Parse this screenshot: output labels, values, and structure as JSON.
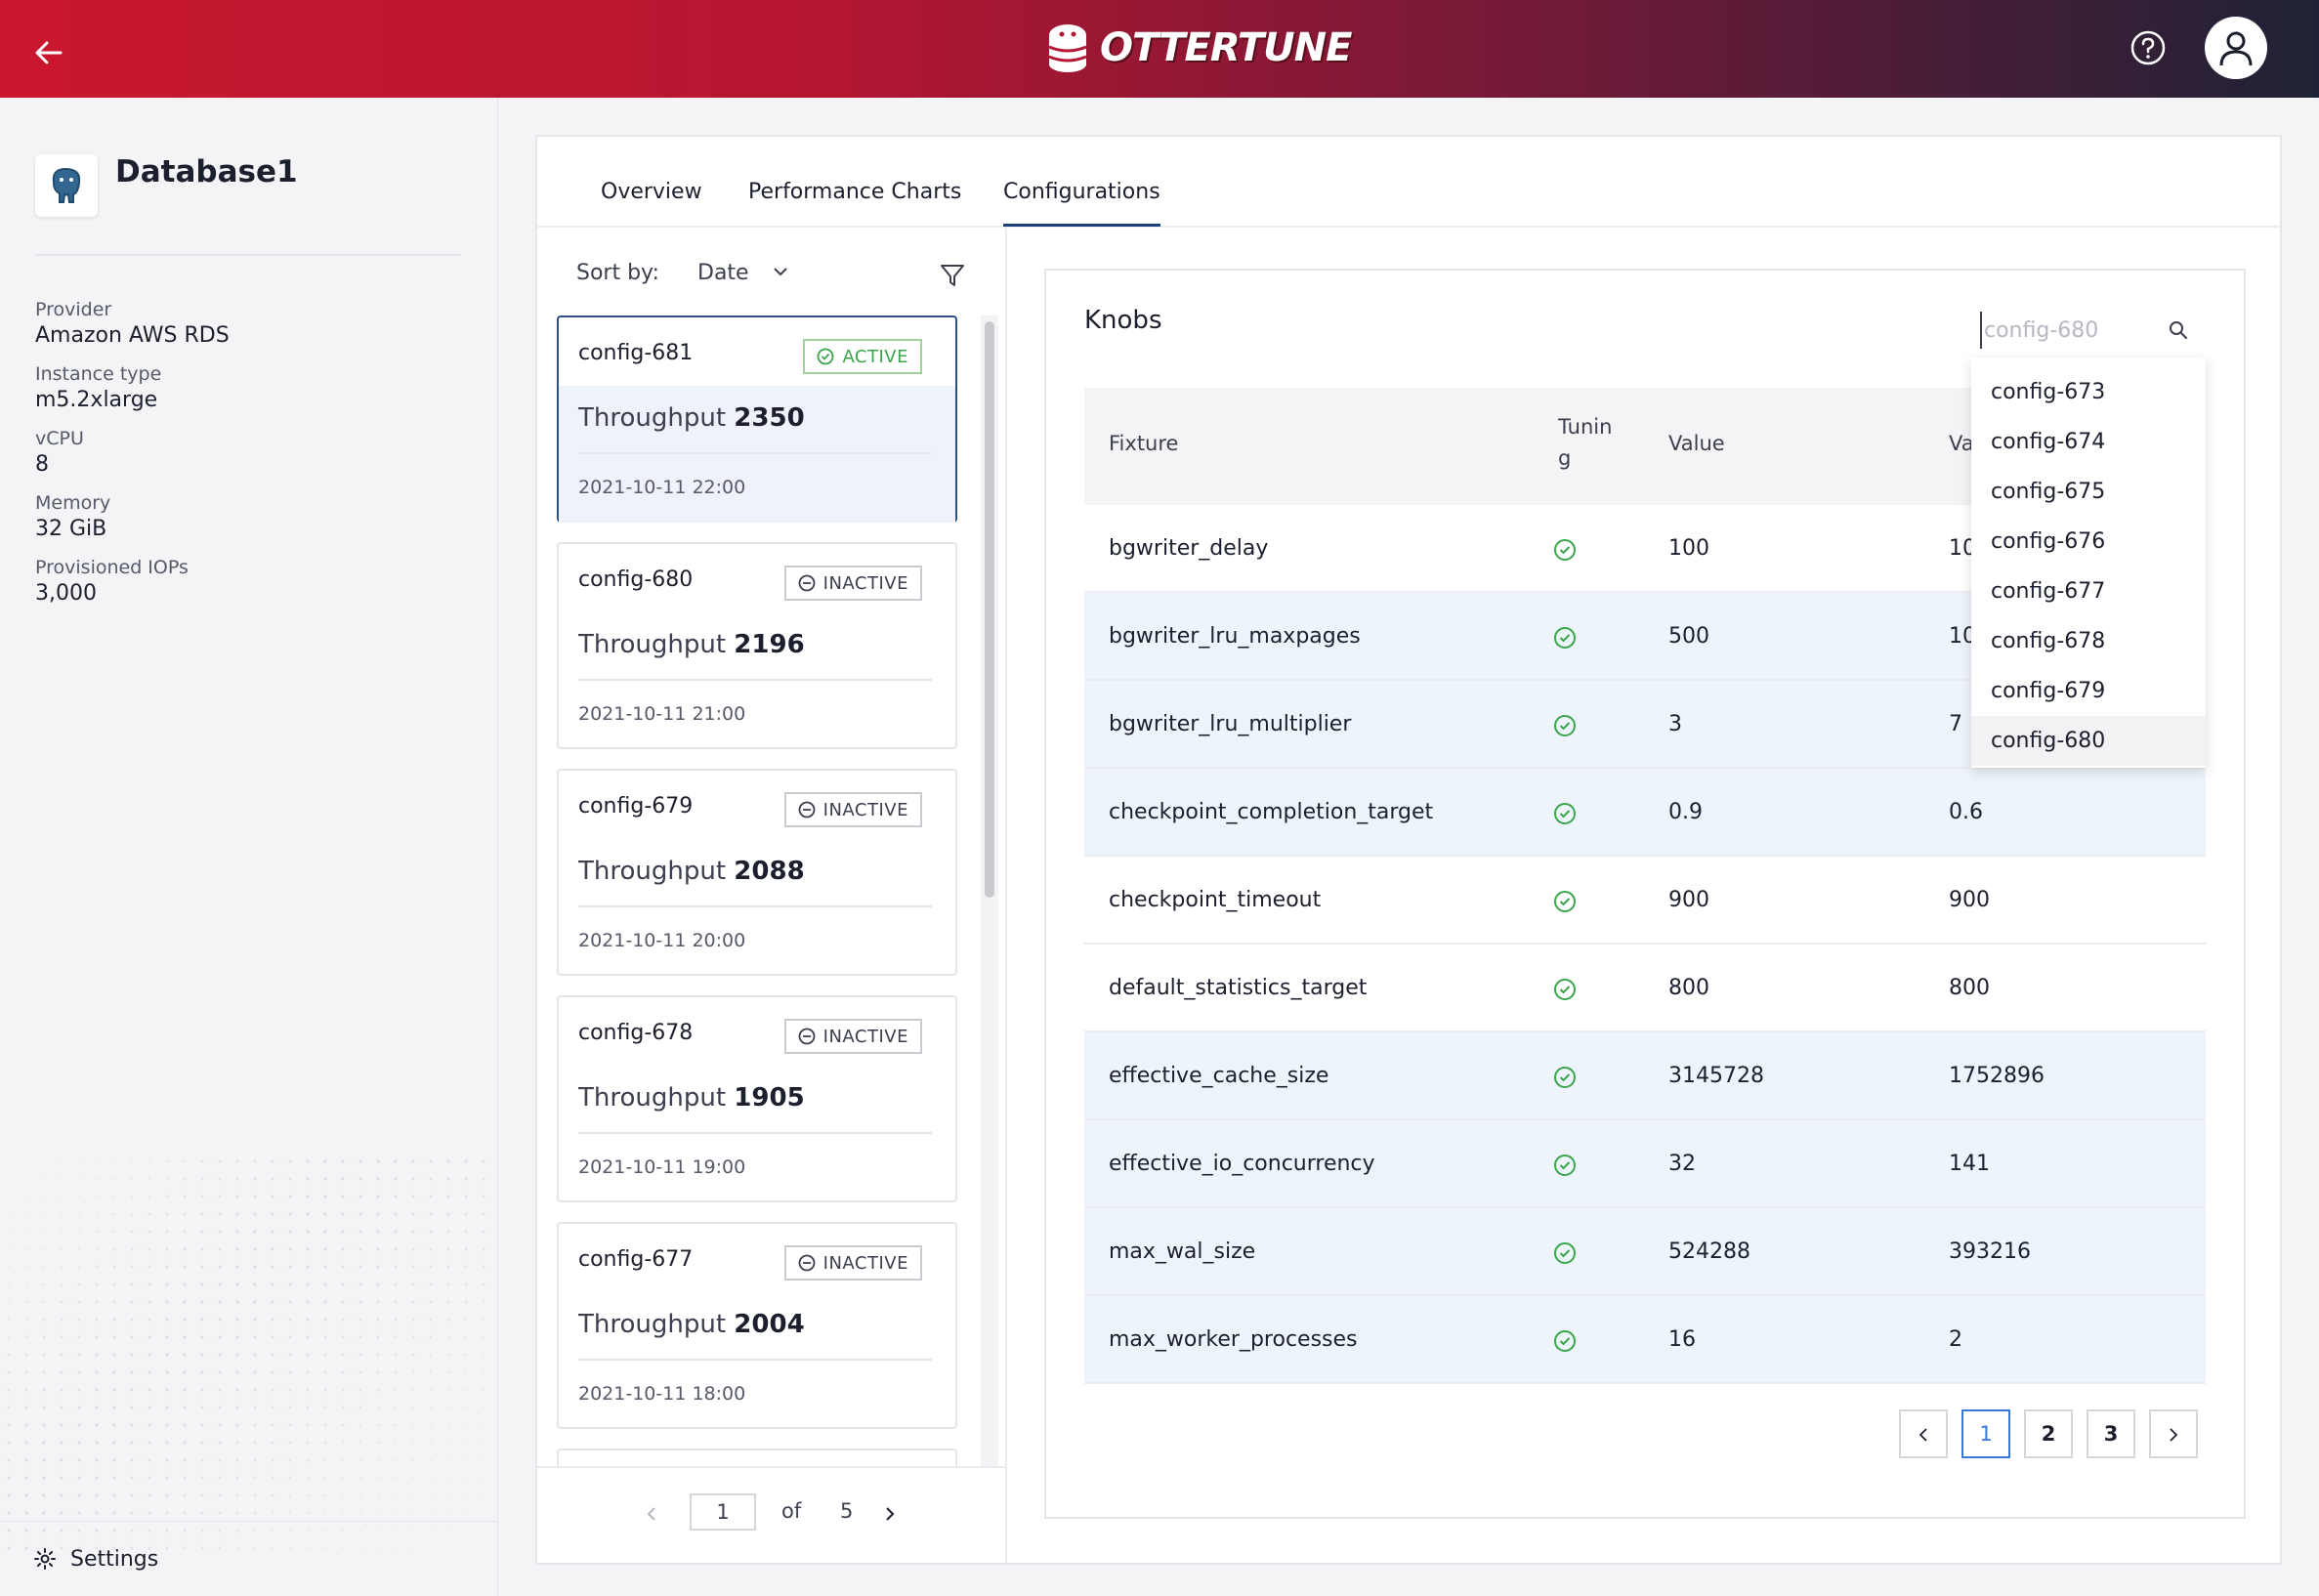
{
  "header": {
    "brand": "OTTERTUNE",
    "back_icon": "arrow-left-icon",
    "help_icon": "question-circle-icon",
    "user_icon": "user-icon",
    "gradient": [
      "#c9172f",
      "#6a1a38",
      "#1f2236"
    ]
  },
  "sidebar": {
    "database_name": "Database1",
    "details": [
      {
        "label": "Provider",
        "value": "Amazon AWS RDS"
      },
      {
        "label": "Instance type",
        "value": "m5.2xlarge"
      },
      {
        "label": "vCPU",
        "value": "8"
      },
      {
        "label": "Memory",
        "value": "32 GiB"
      },
      {
        "label": "Provisioned IOPs",
        "value": "3,000"
      }
    ],
    "settings_label": "Settings"
  },
  "tabs": [
    {
      "label": "Overview",
      "active": false
    },
    {
      "label": "Performance Charts",
      "active": false
    },
    {
      "label": "Configurations",
      "active": true
    }
  ],
  "config_list": {
    "sort_label": "Sort by:",
    "sort_value": "Date",
    "configs": [
      {
        "name": "config-681",
        "status": "ACTIVE",
        "throughput_label": "Throughput",
        "throughput": "2350",
        "date": "2021-10-11 22:00"
      },
      {
        "name": "config-680",
        "status": "INACTIVE",
        "throughput_label": "Throughput",
        "throughput": "2196",
        "date": "2021-10-11 21:00"
      },
      {
        "name": "config-679",
        "status": "INACTIVE",
        "throughput_label": "Throughput",
        "throughput": "2088",
        "date": "2021-10-11 20:00"
      },
      {
        "name": "config-678",
        "status": "INACTIVE",
        "throughput_label": "Throughput",
        "throughput": "1905",
        "date": "2021-10-11 19:00"
      },
      {
        "name": "config-677",
        "status": "INACTIVE",
        "throughput_label": "Throughput",
        "throughput": "2004",
        "date": "2021-10-11 18:00"
      }
    ],
    "pager": {
      "current": "1",
      "of_label": "of",
      "total": "5"
    }
  },
  "knobs": {
    "title": "Knobs",
    "search_placeholder": "config-680",
    "columns": [
      "Fixture",
      "Tunin g",
      "Value",
      "Va"
    ],
    "rows": [
      {
        "fixture": "bgwriter_delay",
        "tuning": true,
        "value": "100",
        "compare": "10"
      },
      {
        "fixture": "bgwriter_lru_maxpages",
        "tuning": true,
        "value": "500",
        "compare": "10"
      },
      {
        "fixture": "bgwriter_lru_multiplier",
        "tuning": true,
        "value": "3",
        "compare": "7"
      },
      {
        "fixture": "checkpoint_completion_target",
        "tuning": true,
        "value": "0.9",
        "compare": "0.6"
      },
      {
        "fixture": "checkpoint_timeout",
        "tuning": true,
        "value": "900",
        "compare": "900"
      },
      {
        "fixture": "default_statistics_target",
        "tuning": true,
        "value": "800",
        "compare": "800"
      },
      {
        "fixture": "effective_cache_size",
        "tuning": true,
        "value": "3145728",
        "compare": "1752896"
      },
      {
        "fixture": "effective_io_concurrency",
        "tuning": true,
        "value": "32",
        "compare": "141"
      },
      {
        "fixture": "max_wal_size",
        "tuning": true,
        "value": "524288",
        "compare": "393216"
      },
      {
        "fixture": "max_worker_processes",
        "tuning": true,
        "value": "16",
        "compare": "2"
      }
    ],
    "pagination": {
      "pages": [
        "1",
        "2",
        "3"
      ],
      "current": "1"
    },
    "dropdown_options": [
      "config-673",
      "config-674",
      "config-675",
      "config-676",
      "config-677",
      "config-678",
      "config-679",
      "config-680"
    ],
    "dropdown_selected": "config-680"
  },
  "colors": {
    "accent": "#2c4f86",
    "active_green": "#3aa54a",
    "row_highlight": "#eef4fb",
    "page_current": "#3a7bd5"
  }
}
